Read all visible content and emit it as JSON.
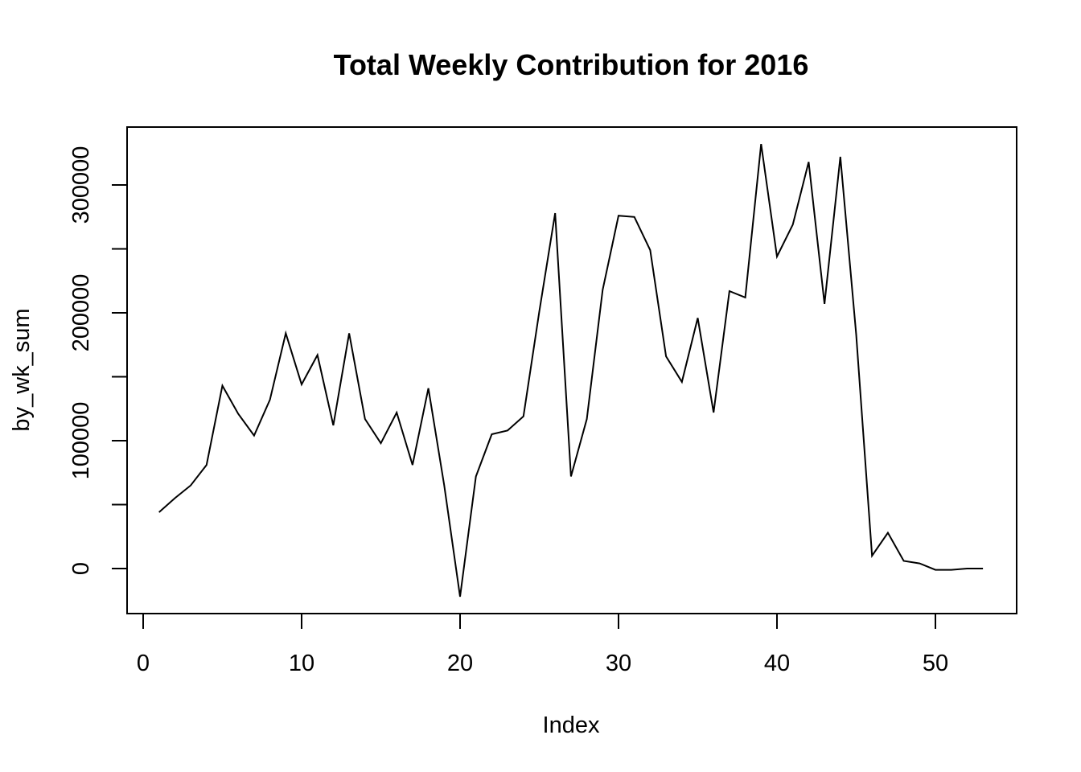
{
  "chart_data": {
    "type": "line",
    "title": "Total Weekly Contribution for 2016",
    "xlabel": "Index",
    "ylabel": "by_wk_sum",
    "xlim": [
      0,
      55
    ],
    "ylim": [
      -35000,
      345000
    ],
    "x_ticks": [
      0,
      10,
      20,
      30,
      40,
      50
    ],
    "y_ticks": [
      0,
      50000,
      100000,
      150000,
      200000,
      250000,
      300000
    ],
    "y_tick_labels": [
      "0",
      "",
      "100000",
      "",
      "200000",
      "",
      "300000"
    ],
    "grid": false,
    "legend": "none",
    "color": "#000000",
    "series": [
      {
        "x": [
          1,
          2,
          3,
          4,
          5,
          6,
          7,
          8,
          9,
          10,
          11,
          12,
          13,
          14,
          15,
          16,
          17,
          18,
          19,
          20,
          21,
          22,
          23,
          24,
          25,
          26,
          27,
          28,
          29,
          30,
          31,
          32,
          33,
          34,
          35,
          36,
          37,
          38,
          39,
          40,
          41,
          42,
          43,
          44,
          45,
          46,
          47,
          48,
          49,
          50,
          51,
          52,
          53
        ],
        "values": [
          44000,
          55000,
          65000,
          81000,
          143000,
          121000,
          104000,
          132000,
          184000,
          144000,
          167000,
          112000,
          184000,
          117000,
          98000,
          122000,
          81000,
          141000,
          65000,
          -22000,
          72000,
          105000,
          108000,
          119000,
          201000,
          278000,
          72000,
          117000,
          218000,
          276000,
          275000,
          249000,
          166000,
          146000,
          196000,
          122000,
          217000,
          212000,
          332000,
          244000,
          269000,
          318000,
          207000,
          322000,
          183000,
          10000,
          28000,
          6000,
          4000,
          -1000,
          -1000,
          0,
          0
        ]
      }
    ]
  }
}
